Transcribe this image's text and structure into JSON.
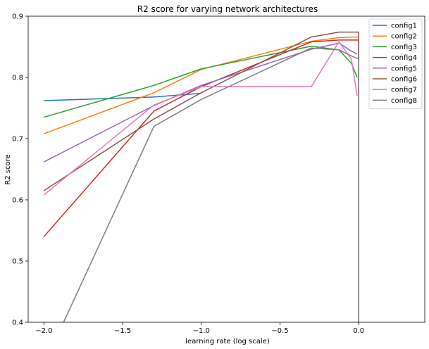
{
  "chart_data": {
    "type": "line",
    "title": "R2 score for varying network architectures",
    "xlabel": "learning rate (log scale)",
    "ylabel": "R2 score",
    "xlim": [
      -2.1,
      0.42
    ],
    "ylim": [
      0.4,
      0.9
    ],
    "x_ticks": [
      -2.0,
      -1.5,
      -1.0,
      -0.5,
      0.0
    ],
    "x_tick_labels": [
      "−2.0",
      "−1.5",
      "−1.0",
      "−0.5",
      "0.0"
    ],
    "y_ticks": [
      0.4,
      0.5,
      0.6,
      0.7,
      0.8,
      0.9
    ],
    "y_tick_labels": [
      "0.4",
      "0.5",
      "0.6",
      "0.7",
      "0.8",
      "0.9"
    ],
    "grid": false,
    "legend_position": "top-right",
    "series": [
      {
        "name": "config1",
        "color": "#1f77b4",
        "points": [
          [
            -2.0,
            0.762
          ],
          [
            -1.301,
            0.768
          ],
          [
            -1.0,
            0.774
          ]
        ]
      },
      {
        "name": "config2",
        "color": "#ff7f0e",
        "points": [
          [
            -2.0,
            0.708
          ],
          [
            -1.301,
            0.775
          ],
          [
            -1.0,
            0.813
          ],
          [
            -0.301,
            0.859
          ],
          [
            -0.125,
            0.865
          ],
          [
            -0.046,
            0.866
          ],
          [
            -0.01,
            0.866
          ],
          [
            0.0,
            0.866
          ]
        ]
      },
      {
        "name": "config3",
        "color": "#2ca02c",
        "points": [
          [
            -2.0,
            0.735
          ],
          [
            -1.301,
            0.787
          ],
          [
            -1.0,
            0.814
          ],
          [
            -0.301,
            0.851
          ],
          [
            -0.125,
            0.845
          ],
          [
            -0.046,
            0.823
          ],
          [
            -0.01,
            0.8
          ]
        ]
      },
      {
        "name": "config4",
        "color": "#d62728",
        "points": [
          [
            -2.0,
            0.54
          ],
          [
            -1.301,
            0.745
          ],
          [
            -1.0,
            0.785
          ],
          [
            -0.301,
            0.858
          ],
          [
            -0.125,
            0.861
          ],
          [
            -0.046,
            0.861
          ],
          [
            -0.01,
            0.861
          ],
          [
            0.0,
            0.861
          ],
          [
            0.0,
            0.4
          ]
        ]
      },
      {
        "name": "config5",
        "color": "#9467bd",
        "points": [
          [
            -2.0,
            0.662
          ],
          [
            -1.301,
            0.754
          ],
          [
            -1.0,
            0.787
          ],
          [
            -0.301,
            0.846
          ],
          [
            -0.125,
            0.856
          ],
          [
            -0.046,
            0.843
          ],
          [
            -0.01,
            0.838
          ]
        ]
      },
      {
        "name": "config6",
        "color": "#8c564b",
        "points": [
          [
            -2.0,
            0.615
          ],
          [
            -1.301,
            0.732
          ],
          [
            -1.0,
            0.775
          ],
          [
            -0.301,
            0.866
          ],
          [
            -0.125,
            0.874
          ],
          [
            -0.046,
            0.874
          ],
          [
            -0.01,
            0.874
          ],
          [
            0.0,
            0.874
          ],
          [
            0.0,
            0.4
          ]
        ]
      },
      {
        "name": "config7",
        "color": "#e377c2",
        "points": [
          [
            -2.0,
            0.608
          ],
          [
            -1.301,
            0.755
          ],
          [
            -1.0,
            0.785
          ],
          [
            -0.301,
            0.785
          ],
          [
            -0.125,
            0.858
          ],
          [
            -0.046,
            0.83
          ],
          [
            -0.01,
            0.77
          ]
        ]
      },
      {
        "name": "config8",
        "color": "#7f7f7f",
        "points": [
          [
            -1.875,
            0.4
          ],
          [
            -1.301,
            0.72
          ],
          [
            -1.0,
            0.764
          ],
          [
            -0.301,
            0.848
          ],
          [
            -0.125,
            0.845
          ],
          [
            -0.046,
            0.835
          ],
          [
            -0.01,
            0.831
          ],
          [
            0.0,
            0.831
          ],
          [
            0.0,
            0.4
          ]
        ]
      }
    ]
  }
}
